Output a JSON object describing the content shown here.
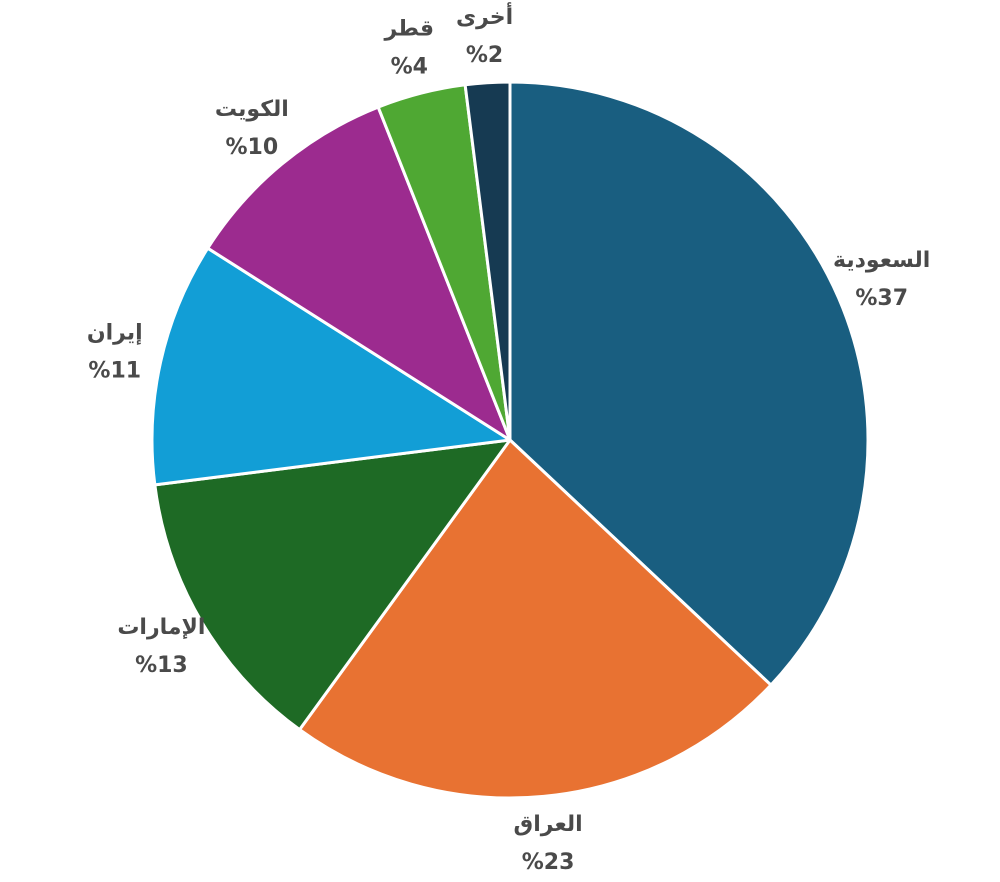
{
  "chart_data": {
    "type": "pie",
    "categories": [
      "السعودية",
      "العراق",
      "الإمارات",
      "إيران",
      "الكويت",
      "قطر",
      "أخرى"
    ],
    "values": [
      37,
      23,
      13,
      11,
      10,
      4,
      2
    ],
    "value_labels": [
      "%37",
      "%23",
      "%13",
      "%11",
      "%10",
      "%4",
      "%2"
    ],
    "colors": [
      "#195e80",
      "#e87232",
      "#1e6a25",
      "#129ed6",
      "#9c2b8f",
      "#4fa833",
      "#163a52"
    ]
  }
}
